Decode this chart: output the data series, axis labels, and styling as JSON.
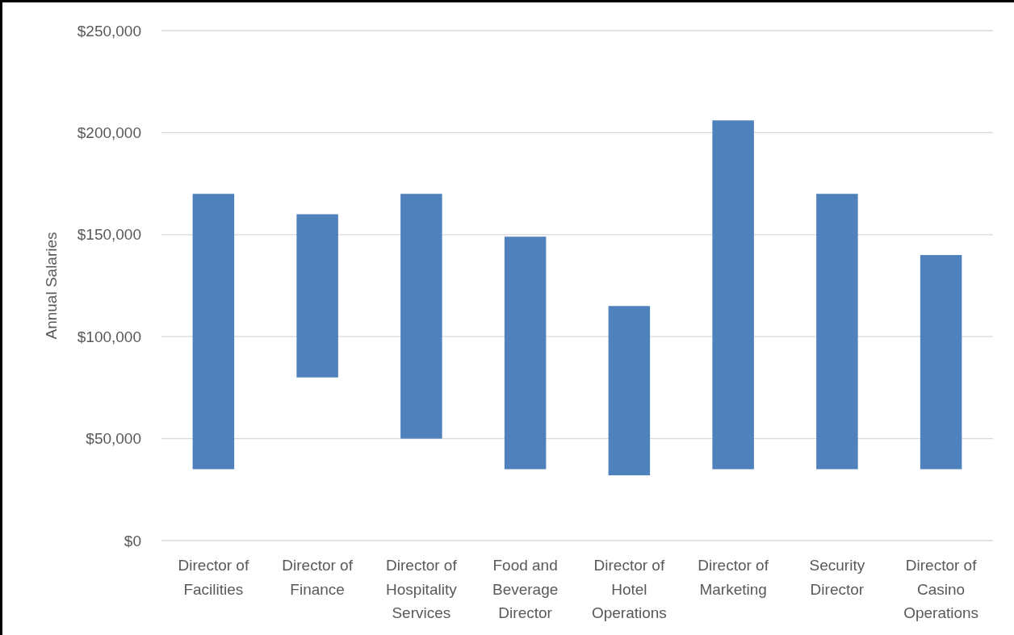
{
  "chart_data": {
    "type": "bar",
    "ylabel": "Annual Salaries",
    "categories": [
      "Director of Facilities",
      "Director of Finance",
      "Director of Hospitality Services",
      "Food and Beverage Director",
      "Director of Hotel Operations",
      "Director of Marketing",
      "Security Director",
      "Director of Casino Operations"
    ],
    "base": [
      35000,
      80000,
      50000,
      35000,
      32000,
      35000,
      35000,
      35000
    ],
    "values": [
      135000,
      80000,
      120000,
      114000,
      83000,
      171000,
      135000,
      105000
    ],
    "color": "#4f81bd",
    "ylim": [
      0,
      250000
    ],
    "yticks": [
      {
        "value": 0,
        "label": "$0"
      },
      {
        "value": 50000,
        "label": "$50,000"
      },
      {
        "value": 100000,
        "label": "$100,000"
      },
      {
        "value": 150000,
        "label": "$150,000"
      },
      {
        "value": 200000,
        "label": "$200,000"
      },
      {
        "value": 250000,
        "label": "$250,000"
      }
    ],
    "grid": true
  }
}
